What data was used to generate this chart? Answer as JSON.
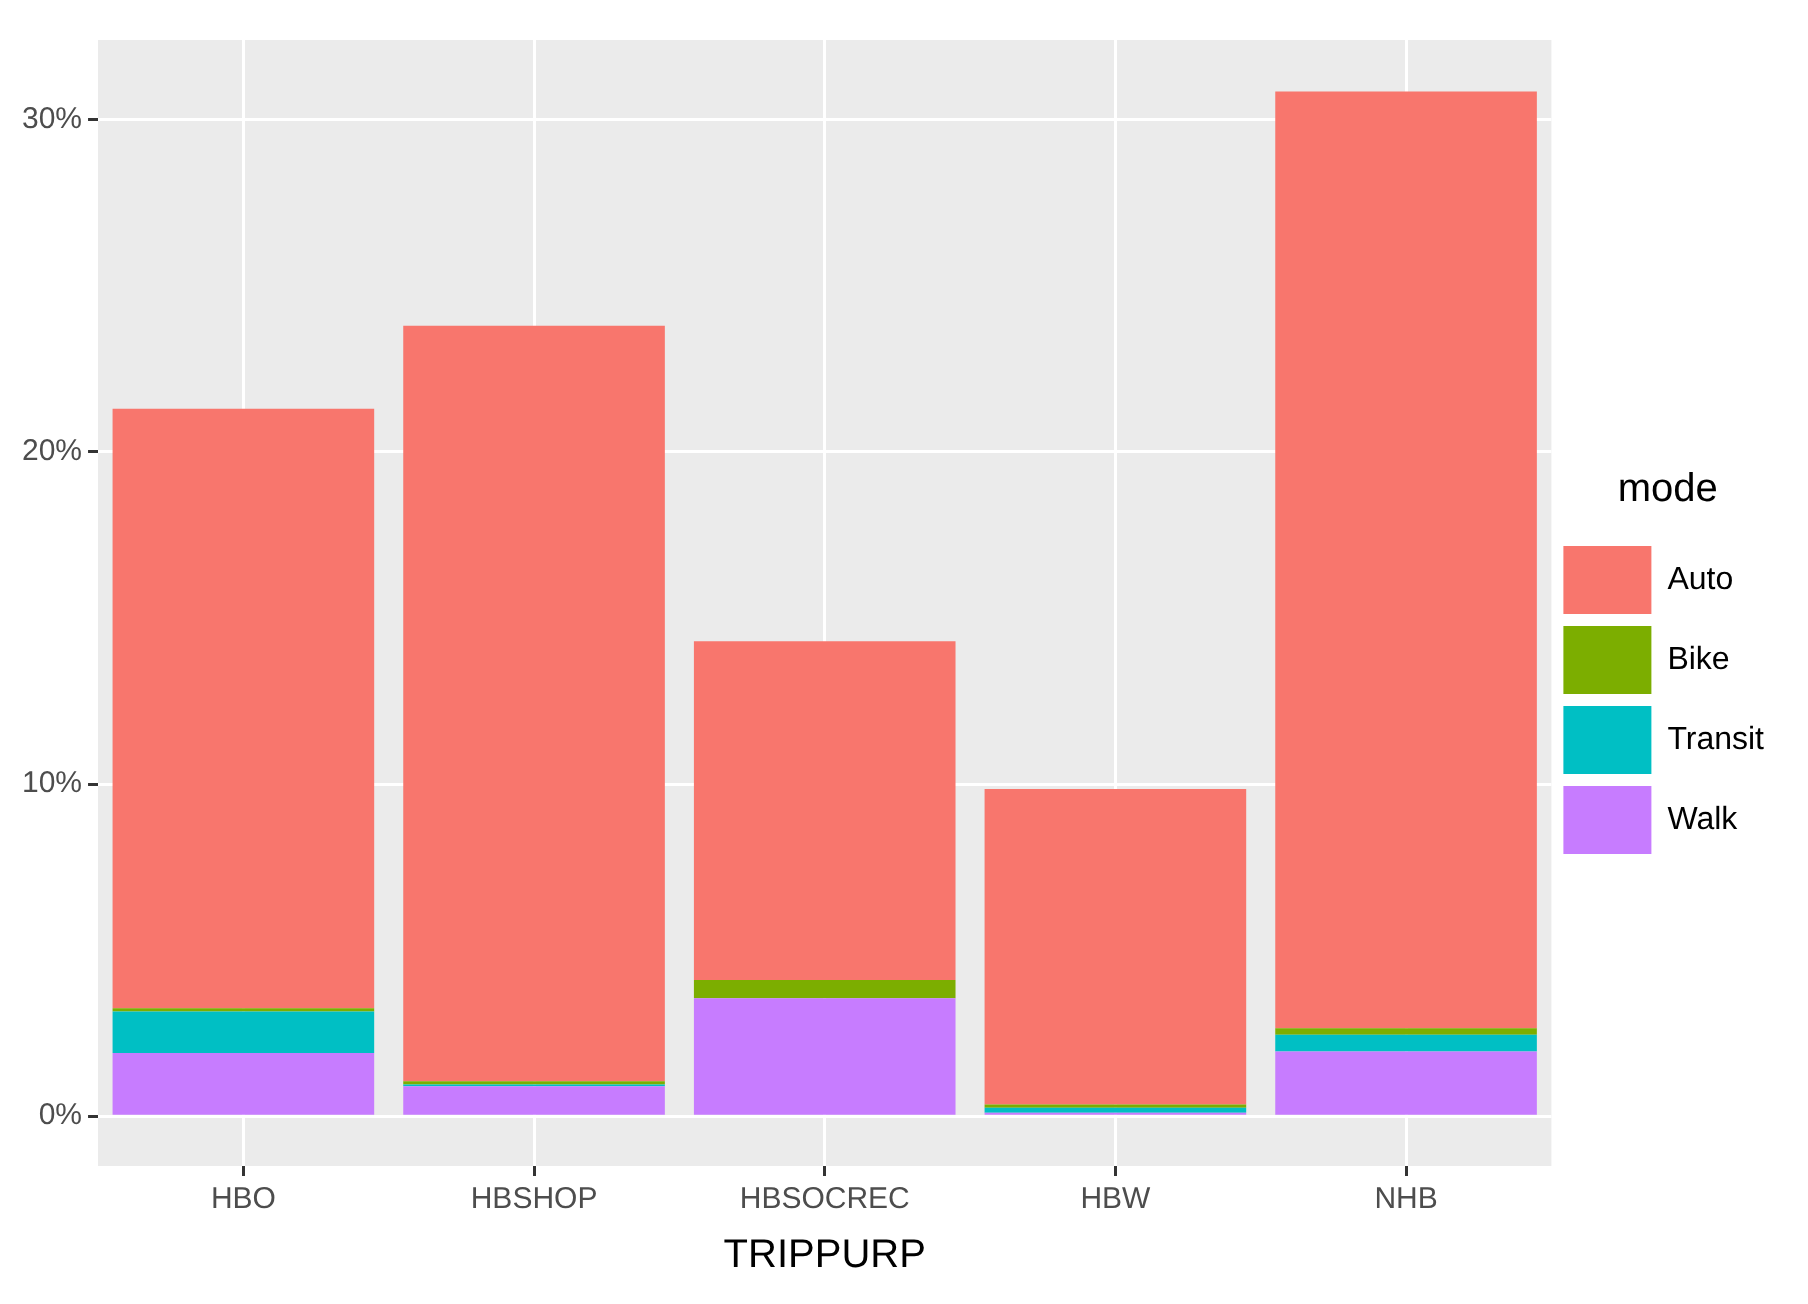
{
  "chart_data": {
    "type": "bar",
    "stacked": true,
    "xlabel": "TRIPPURP",
    "legend_title": "mode",
    "legend": "right",
    "grid": true,
    "categories": [
      "HBO",
      "HBSHOP",
      "HBSOCREC",
      "HBW",
      "NHB"
    ],
    "series": [
      {
        "name": "Walk",
        "color": "#c77cff",
        "values": [
          1.9,
          0.9,
          3.55,
          0.1,
          1.95
        ]
      },
      {
        "name": "Transit",
        "color": "#00bfc4",
        "values": [
          1.25,
          0.05,
          0,
          0.15,
          0.5
        ]
      },
      {
        "name": "Bike",
        "color": "#7cae00",
        "values": [
          0.1,
          0.1,
          0.55,
          0.1,
          0.2
        ]
      },
      {
        "name": "Auto",
        "color": "#f8766d",
        "values": [
          18.05,
          22.75,
          10.2,
          9.5,
          28.2
        ]
      }
    ],
    "ylim": [
      -1.5,
      32.4
    ],
    "yticks": [
      {
        "value": 0,
        "label": "0%"
      },
      {
        "value": 10,
        "label": "10%"
      },
      {
        "value": 20,
        "label": "20%"
      },
      {
        "value": 30,
        "label": "30%"
      }
    ]
  }
}
